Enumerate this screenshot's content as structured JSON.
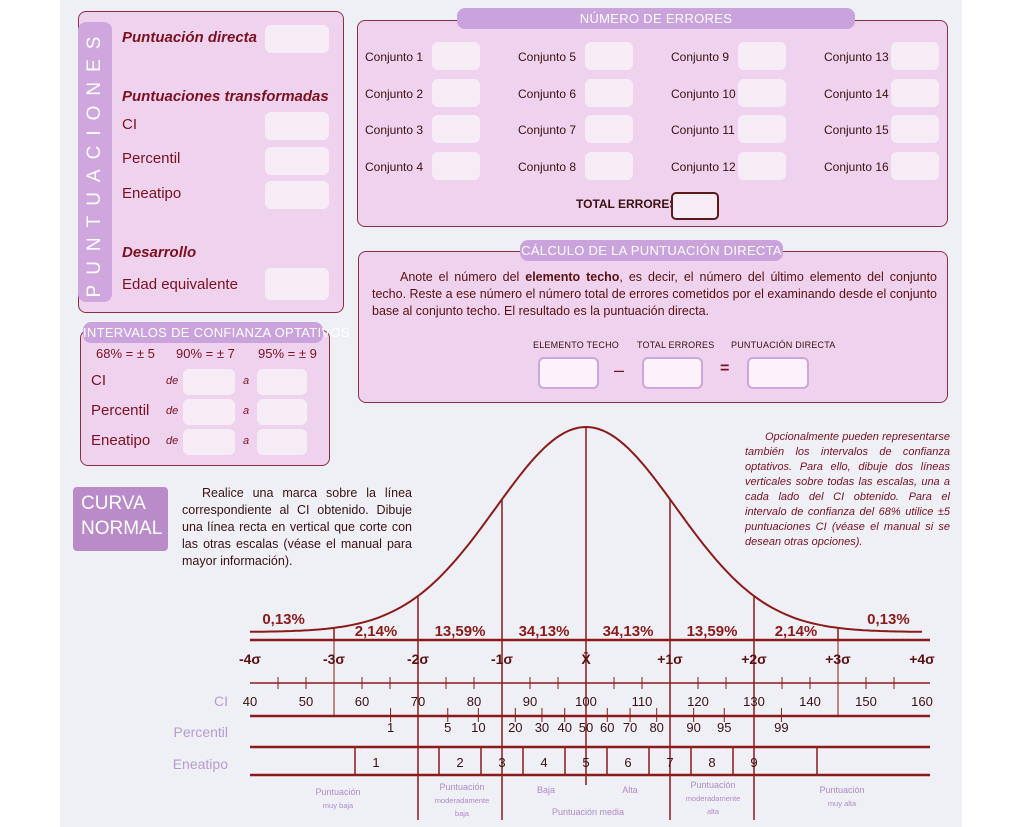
{
  "puntuaciones": {
    "side_label": "PUNTUACIONES",
    "directa": "Puntuación directa",
    "transformadas": "Puntuaciones transformadas",
    "ci": "CI",
    "percentil": "Percentil",
    "eneatipo": "Eneatipo",
    "desarrollo": "Desarrollo",
    "edad": "Edad equivalente"
  },
  "intervalos": {
    "title": "INTERVALOS DE CONFIANZA OPTATIVOS",
    "levels": [
      "68% = ± 5",
      "90% =  ± 7",
      "95% = ± 9"
    ],
    "rows": [
      "CI",
      "Percentil",
      "Eneatipo"
    ],
    "de": "de",
    "a": "a"
  },
  "errores": {
    "title": "NÚMERO DE ERRORES",
    "conjuntos": [
      "Conjunto 1",
      "Conjunto 2",
      "Conjunto 3",
      "Conjunto 4",
      "Conjunto 5",
      "Conjunto 6",
      "Conjunto 7",
      "Conjunto 8",
      "Conjunto 9",
      "Conjunto 10",
      "Conjunto 11",
      "Conjunto 12",
      "Conjunto 13",
      "Conjunto 14",
      "Conjunto 15",
      "Conjunto 16"
    ],
    "total": "TOTAL ERRORES"
  },
  "calculo": {
    "title": "CÁLCULO DE LA PUNTUACIÓN DIRECTA",
    "text_pre": "Anote el número del ",
    "text_bold": "elemento techo",
    "text_post": ", es decir, el número del último elemento del conjunto techo. Reste a ese número el número total de errores cometidos por el examinando desde el conjunto base al conjunto techo. El resultado es la puntuación directa.",
    "label_techo": "Elemento techo",
    "label_errores": "Total errores",
    "label_directa": "Puntuación directa",
    "minus": "–",
    "equals": "="
  },
  "curva": {
    "title_1": "CURVA",
    "title_2": "NORMAL",
    "instructions": "Realice una marca sobre la línea correspondiente al CI obtenido. Dibuje una línea recta en vertical que corte con las otras escalas (véase el manual para mayor información).",
    "note": "Opcionalmente pueden representarse también los intervalos de confianza optativos. Para ello, dibuje dos líneas verticales sobre todas las escalas, una a cada lado del CI obtenido. Para el intervalo de confianza del 68% utilice ±5 puntuaciones CI (véase el manual si se desean otras opciones).",
    "percentages": [
      "0,13%",
      "2,14%",
      "13,59%",
      "34,13%",
      "34,13%",
      "13,59%",
      "2,14%",
      "0,13%"
    ],
    "sigma_labels": [
      "-4σ",
      "-3σ",
      "-2σ",
      "-1σ",
      "X̄",
      "+1σ",
      "+2σ",
      "+3σ",
      "+4σ"
    ],
    "scale_ci_label": "CI",
    "ci_ticks": [
      40,
      50,
      60,
      70,
      80,
      90,
      100,
      110,
      120,
      130,
      140,
      150,
      160
    ],
    "scale_percentil_label": "Percentil",
    "percentil_ticks": [
      1,
      5,
      10,
      20,
      30,
      40,
      50,
      60,
      70,
      80,
      90,
      95,
      99
    ],
    "scale_eneatipo_label": "Eneatipo",
    "eneatipos": [
      1,
      2,
      3,
      4,
      5,
      6,
      7,
      8,
      9
    ],
    "categories": {
      "muy_baja": [
        "Puntuación",
        "muy baja"
      ],
      "mod_baja": [
        "Puntuación",
        "moderadamente",
        "baja"
      ],
      "baja": "Baja",
      "alta": "Alta",
      "media": "Puntuación media",
      "mod_alta": [
        "Puntuación",
        "moderadamente",
        "alta"
      ],
      "muy_alta": [
        "Puntuación",
        "muy alta"
      ]
    }
  },
  "colors": {
    "text": "#7a1020",
    "box": "#efd3ee",
    "accent": "#caa2dc",
    "line": "#8b1a1a"
  }
}
